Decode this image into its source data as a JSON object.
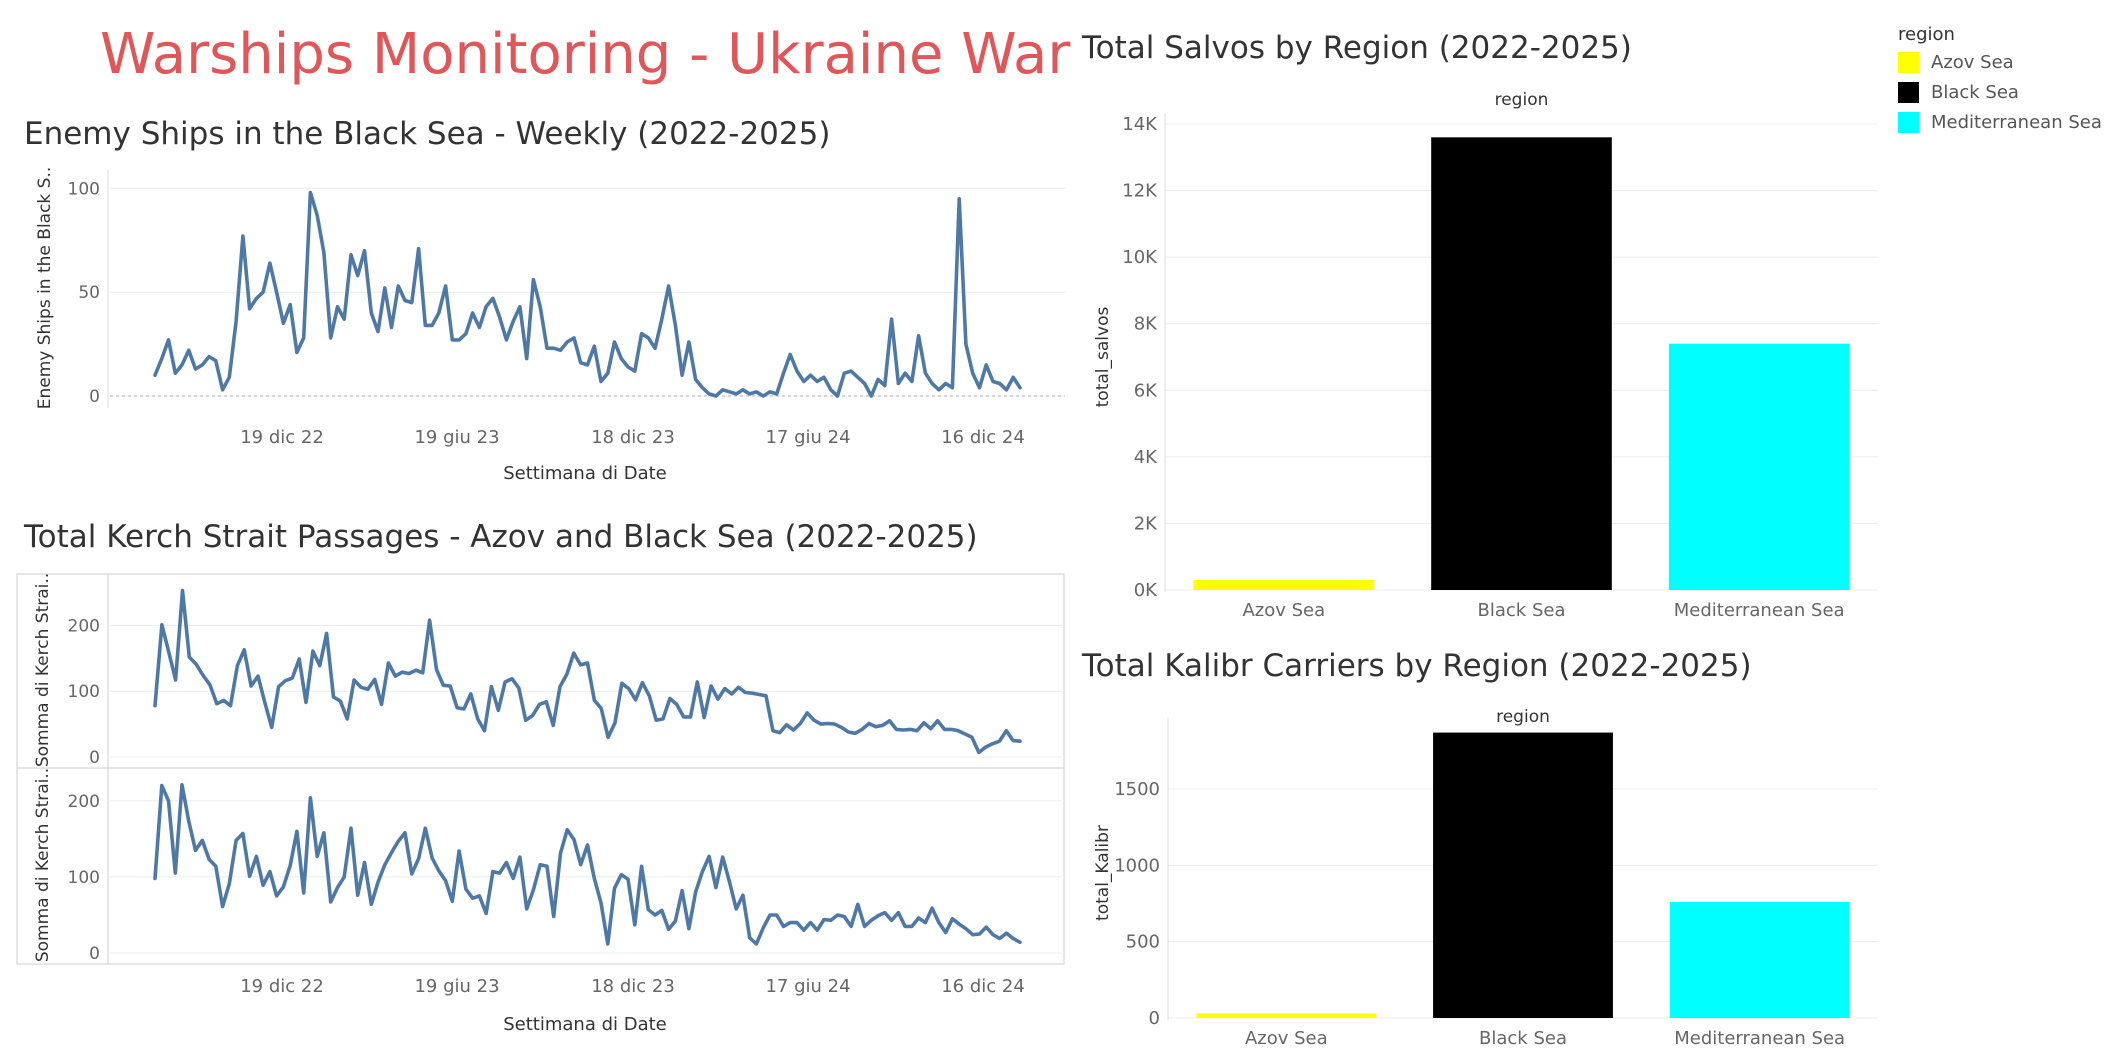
{
  "dashboard": {
    "title": "Warships Monitoring - Ukraine War"
  },
  "colors": {
    "line": "#4e79a7",
    "title": "#e05759",
    "azov": "#ffff00",
    "black": "#000000",
    "med": "#00ffff"
  },
  "legend": {
    "title": "region",
    "items": [
      {
        "label": "Azov Sea",
        "color": "#ffff00"
      },
      {
        "label": "Black Sea",
        "color": "#000000"
      },
      {
        "label": "Mediterranean Sea",
        "color": "#00ffff"
      }
    ]
  },
  "chart_data": [
    {
      "type": "line",
      "title": "Enemy Ships in the Black Sea - Weekly (2022-2025)",
      "xlabel": "Settimana di Date",
      "ylabel": "Enemy Ships in the Black S..",
      "ylim": [
        0,
        105
      ],
      "y_ticks": [
        0,
        50,
        100
      ],
      "x_ticks": [
        "19 dic 22",
        "19 giu 23",
        "18 dic 23",
        "17 giu 24",
        "16 dic 24"
      ],
      "values": [
        10,
        18,
        27,
        11,
        15,
        22,
        13,
        15,
        19,
        17,
        3,
        9,
        36,
        77,
        42,
        47,
        50,
        64,
        50,
        35,
        44,
        21,
        28,
        98,
        87,
        69,
        28,
        43,
        37,
        68,
        58,
        70,
        40,
        31,
        52,
        33,
        53,
        46,
        45,
        71,
        34,
        34,
        40,
        53,
        27,
        27,
        30,
        40,
        33,
        43,
        47,
        38,
        27,
        36,
        43,
        18,
        56,
        43,
        23,
        23,
        22,
        26,
        28,
        16,
        15,
        24,
        7,
        11,
        26,
        18,
        14,
        12,
        30,
        28,
        23,
        37,
        53,
        34,
        10,
        26,
        8,
        4,
        1,
        0,
        3,
        2,
        1,
        3,
        1,
        2,
        0,
        2,
        1,
        11,
        20,
        12,
        7,
        10,
        7,
        9,
        3,
        0,
        11,
        12,
        9,
        6,
        0,
        8,
        5,
        37,
        6,
        11,
        7,
        29,
        11,
        6,
        3,
        6,
        4,
        95,
        25,
        11,
        4,
        15,
        7,
        6,
        3,
        9,
        4
      ],
      "grid": true,
      "reference_line_zero": true
    },
    {
      "type": "line",
      "title": "Total Kerch Strait Passages - Azov and Black Sea (2022-2025)",
      "xlabel": "Settimana di Date",
      "x_ticks": [
        "19 dic 22",
        "19 giu 23",
        "18 dic 23",
        "17 giu 24",
        "16 dic 24"
      ],
      "panes": [
        {
          "ylabel": "Somma di Kerch Strai..",
          "ylim": [
            0,
            260
          ],
          "y_ticks": [
            0,
            100,
            200
          ],
          "values": [
            78,
            201,
            160,
            117,
            253,
            152,
            141,
            124,
            110,
            81,
            86,
            78,
            139,
            163,
            108,
            123,
            83,
            45,
            107,
            116,
            120,
            149,
            83,
            161,
            139,
            188,
            91,
            85,
            58,
            117,
            106,
            103,
            118,
            80,
            143,
            123,
            129,
            127,
            132,
            128,
            208,
            133,
            109,
            108,
            75,
            73,
            96,
            58,
            40,
            107,
            71,
            114,
            119,
            105,
            56,
            63,
            80,
            84,
            48,
            107,
            126,
            158,
            140,
            143,
            86,
            74,
            30,
            52,
            112,
            104,
            87,
            113,
            93,
            56,
            58,
            89,
            80,
            61,
            61,
            114,
            60,
            108,
            88,
            104,
            96,
            106,
            98,
            97,
            95,
            93,
            40,
            37,
            49,
            41,
            51,
            67,
            56,
            50,
            51,
            50,
            45,
            38,
            36,
            42,
            51,
            46,
            48,
            55,
            42,
            41,
            42,
            40,
            52,
            43,
            55,
            42,
            42,
            40,
            35,
            30,
            7,
            15,
            20,
            24,
            40,
            25,
            24
          ],
          "grid": true
        },
        {
          "ylabel": "Somma di Kerch Strai..",
          "ylim": [
            0,
            230
          ],
          "y_ticks": [
            0,
            100,
            200
          ],
          "values": [
            98,
            220,
            200,
            105,
            221,
            173,
            135,
            148,
            123,
            114,
            61,
            91,
            148,
            157,
            101,
            127,
            89,
            107,
            75,
            87,
            115,
            160,
            79,
            204,
            127,
            158,
            67,
            86,
            100,
            164,
            76,
            119,
            64,
            93,
            116,
            132,
            147,
            158,
            104,
            124,
            164,
            125,
            108,
            95,
            68,
            134,
            84,
            72,
            75,
            52,
            107,
            105,
            119,
            98,
            126,
            58,
            83,
            116,
            114,
            48,
            131,
            162,
            149,
            116,
            142,
            98,
            66,
            12,
            85,
            103,
            97,
            37,
            114,
            57,
            50,
            56,
            31,
            42,
            82,
            32,
            80,
            107,
            127,
            86,
            126,
            94,
            58,
            76,
            20,
            12,
            33,
            50,
            50,
            35,
            40,
            40,
            30,
            40,
            30,
            44,
            43,
            50,
            48,
            35,
            64,
            35,
            43,
            49,
            53,
            43,
            53,
            35,
            35,
            46,
            40,
            59,
            40,
            27,
            45,
            38,
            32,
            24,
            25,
            34,
            24,
            19,
            26,
            19,
            14
          ]
        }
      ]
    },
    {
      "type": "bar",
      "title": "Total Salvos by Region (2022-2025)",
      "column_header": "region",
      "ylabel": "total_salvos",
      "categories": [
        "Azov Sea",
        "Black Sea",
        "Mediterranean Sea"
      ],
      "values": [
        300,
        13600,
        7400
      ],
      "ylim": [
        0,
        14000
      ],
      "y_ticks": [
        0,
        2000,
        4000,
        6000,
        8000,
        10000,
        12000,
        14000
      ],
      "y_tick_labels": [
        "0K",
        "2K",
        "4K",
        "6K",
        "8K",
        "10K",
        "12K",
        "14K"
      ]
    },
    {
      "type": "bar",
      "title": "Total Kalibr Carriers by Region (2022-2025)",
      "column_header": "region",
      "ylabel": "total_Kalibr",
      "categories": [
        "Azov Sea",
        "Black Sea",
        "Mediterranean Sea"
      ],
      "values": [
        30,
        1870,
        760
      ],
      "ylim": [
        0,
        1900
      ],
      "y_ticks": [
        0,
        500,
        1000,
        1500
      ],
      "y_tick_labels": [
        "0",
        "500",
        "1000",
        "1500"
      ]
    }
  ]
}
